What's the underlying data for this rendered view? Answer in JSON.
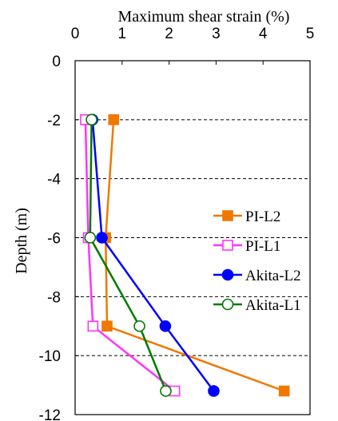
{
  "chart_data": {
    "type": "line",
    "title": "",
    "xlabel": "Maximum shear strain (%)",
    "ylabel": "Depth (m)",
    "xlim": [
      0,
      5
    ],
    "ylim": [
      -12,
      0
    ],
    "x_ticks": [
      "0",
      "1",
      "2",
      "3",
      "4",
      "5"
    ],
    "y_ticks": [
      "0",
      "-2",
      "-4",
      "-6",
      "-8",
      "-10",
      "-12"
    ],
    "x_axis_position": "top",
    "grid": "horizontal dashed lines at every y tick",
    "legend_position": "right",
    "series": [
      {
        "name": "PI-L2",
        "color": "#f07800",
        "marker": "filled-square",
        "x": [
          0.82,
          0.65,
          0.68,
          4.45
        ],
        "y": [
          -2,
          -6,
          -9,
          -11.2
        ]
      },
      {
        "name": "PI-L1",
        "color": "#ff33ff",
        "marker": "open-square",
        "x": [
          0.22,
          0.28,
          0.38,
          2.12
        ],
        "y": [
          -2,
          -6,
          -9,
          -11.2
        ]
      },
      {
        "name": "Akita-L2",
        "color": "#0000ff",
        "marker": "filled-circle",
        "x": [
          0.37,
          0.57,
          1.92,
          2.95
        ],
        "y": [
          -2,
          -6,
          -9,
          -11.2
        ]
      },
      {
        "name": "Akita-L1",
        "color": "#007a00",
        "marker": "open-circle",
        "x": [
          0.35,
          0.32,
          1.37,
          1.93
        ],
        "y": [
          -2,
          -6,
          -9,
          -11.2
        ]
      }
    ]
  }
}
